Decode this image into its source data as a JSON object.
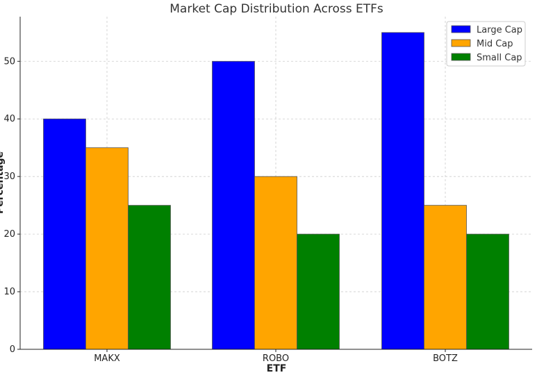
{
  "chart_data": {
    "type": "bar",
    "title": "Market Cap Distribution Across ETFs",
    "xlabel": "ETF",
    "ylabel": "Percentage",
    "categories": [
      "MAKX",
      "ROBO",
      "BOTZ"
    ],
    "series": [
      {
        "name": "Large Cap",
        "values": [
          40,
          50,
          55
        ],
        "color": "#0000ff"
      },
      {
        "name": "Mid Cap",
        "values": [
          35,
          30,
          25
        ],
        "color": "#ffa500"
      },
      {
        "name": "Small Cap",
        "values": [
          25,
          20,
          20
        ],
        "color": "#008000"
      }
    ],
    "ylim": [
      0,
      57.75
    ],
    "yticks": [
      0,
      10,
      20,
      30,
      40,
      50
    ],
    "grid": true,
    "legend": "top-right"
  }
}
